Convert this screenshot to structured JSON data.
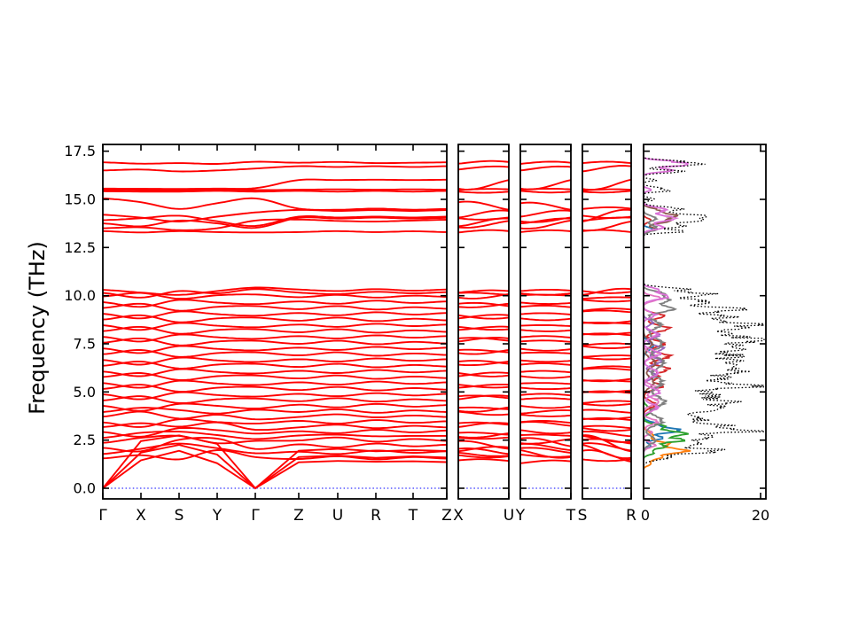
{
  "figure": {
    "background": "#ffffff",
    "frame_color": "#000000"
  },
  "chart_data": {
    "type": "line",
    "subtype": "phonon-band-structure-with-projected-dos",
    "title": "",
    "ylabel": "Frequency (THz)",
    "ylim": [
      -0.55,
      17.85
    ],
    "yticks": {
      "values": [
        0,
        2.5,
        5,
        7.5,
        10,
        12.5,
        15,
        17.5
      ],
      "labels": [
        "0.0",
        "2.5",
        "5.0",
        "7.5",
        "10.0",
        "12.5",
        "15.0",
        "17.5"
      ]
    },
    "band_color": "#ff0000",
    "zero_line": {
      "frequency": 0,
      "color": "#0000ff",
      "style": "dotted"
    },
    "panels": [
      {
        "name": "main-path",
        "klabels": [
          "Γ",
          "X",
          "S",
          "Y",
          "Γ",
          "Z",
          "U",
          "R",
          "T",
          "Z"
        ],
        "node_indices": [
          0,
          1,
          2,
          3,
          4,
          5,
          6,
          7,
          8,
          9
        ]
      },
      {
        "name": "X-U",
        "klabels": [
          "X",
          "U"
        ],
        "node_indices": [
          1,
          6
        ]
      },
      {
        "name": "Y-T",
        "klabels": [
          "Y",
          "T"
        ],
        "node_indices": [
          3,
          8
        ]
      },
      {
        "name": "S-R",
        "klabels": [
          "S",
          "R"
        ],
        "node_indices": [
          2,
          7
        ]
      },
      {
        "name": "dos",
        "xtick_labels": [
          "0",
          "20"
        ],
        "xtick_values": [
          0,
          20
        ],
        "xlim": [
          0,
          20.9
        ]
      }
    ],
    "kpoints": [
      "Γ",
      "X",
      "S",
      "Y",
      "Γ",
      "Z",
      "U",
      "R",
      "T",
      "Z"
    ],
    "bands_THz": [
      [
        0,
        1.45,
        1.95,
        1.3,
        0,
        1.35,
        1.42,
        1.38,
        1.4,
        1.36
      ],
      [
        0,
        1.85,
        2.25,
        1.75,
        0,
        1.62,
        1.7,
        1.58,
        1.66,
        1.6
      ],
      [
        0,
        2.45,
        2.75,
        2.3,
        0,
        1.95,
        2.05,
        1.92,
        1.98,
        1.94
      ],
      [
        1.55,
        1.72,
        1.5,
        1.98,
        1.62,
        1.52,
        1.66,
        1.5,
        1.62,
        1.54
      ],
      [
        1.78,
        2.05,
        2.32,
        2.08,
        1.82,
        1.9,
        1.78,
        1.96,
        1.84,
        1.92
      ],
      [
        2.1,
        1.92,
        2.52,
        2.58,
        2.04,
        2.28,
        2.12,
        2.32,
        2.18,
        2.26
      ],
      [
        2.36,
        2.62,
        2.72,
        2.34,
        2.46,
        2.48,
        2.64,
        2.42,
        2.56,
        2.46
      ],
      [
        2.62,
        2.88,
        2.94,
        2.76,
        2.56,
        2.74,
        2.78,
        2.7,
        2.72,
        2.72
      ],
      [
        2.92,
        2.68,
        3.12,
        3.02,
        2.84,
        2.96,
        2.86,
        3.04,
        2.9,
        3.0
      ],
      [
        3.18,
        3.38,
        3.2,
        3.42,
        3.04,
        3.16,
        3.3,
        3.12,
        3.24,
        3.16
      ],
      [
        3.42,
        3.18,
        3.58,
        3.44,
        3.36,
        3.5,
        3.36,
        3.54,
        3.4,
        3.48
      ],
      [
        3.72,
        3.98,
        3.62,
        3.82,
        3.58,
        3.7,
        3.84,
        3.68,
        3.78,
        3.7
      ],
      [
        3.96,
        4.18,
        4.06,
        3.88,
        4.08,
        3.96,
        4.1,
        3.92,
        4.04,
        3.96
      ],
      [
        4.28,
        4.02,
        4.38,
        4.28,
        4.14,
        4.34,
        4.2,
        4.38,
        4.24,
        4.32
      ],
      [
        4.56,
        4.78,
        4.42,
        4.62,
        4.66,
        4.52,
        4.68,
        4.5,
        4.62,
        4.54
      ],
      [
        4.88,
        4.62,
        4.98,
        4.84,
        4.76,
        4.9,
        4.78,
        4.94,
        4.82,
        4.9
      ],
      [
        5.16,
        5.38,
        5.02,
        5.22,
        5.26,
        5.1,
        5.26,
        5.08,
        5.2,
        5.12
      ],
      [
        5.46,
        5.22,
        5.58,
        5.44,
        5.36,
        5.5,
        5.38,
        5.54,
        5.42,
        5.5
      ],
      [
        5.78,
        5.98,
        5.62,
        5.82,
        5.86,
        5.7,
        5.86,
        5.68,
        5.8,
        5.72
      ],
      [
        6.06,
        5.82,
        6.18,
        6.04,
        5.96,
        6.1,
        5.98,
        6.14,
        6.02,
        6.1
      ],
      [
        6.36,
        6.58,
        6.22,
        6.42,
        6.46,
        6.3,
        6.46,
        6.28,
        6.4,
        6.32
      ],
      [
        6.66,
        6.42,
        6.78,
        6.64,
        6.56,
        6.7,
        6.58,
        6.74,
        6.62,
        6.7
      ],
      [
        6.96,
        7.18,
        6.82,
        7.02,
        7.06,
        6.9,
        7.06,
        6.88,
        7.0,
        6.92
      ],
      [
        7.26,
        7.02,
        7.38,
        7.24,
        7.16,
        7.3,
        7.18,
        7.34,
        7.22,
        7.3
      ],
      [
        7.56,
        7.78,
        7.42,
        7.62,
        7.66,
        7.5,
        7.66,
        7.48,
        7.6,
        7.52
      ],
      [
        7.86,
        7.62,
        7.98,
        7.84,
        7.76,
        7.9,
        7.78,
        7.94,
        7.82,
        7.9
      ],
      [
        8.16,
        8.38,
        8.02,
        8.22,
        8.26,
        8.1,
        8.26,
        8.08,
        8.2,
        8.12
      ],
      [
        8.46,
        8.22,
        8.58,
        8.44,
        8.36,
        8.5,
        8.38,
        8.54,
        8.42,
        8.5
      ],
      [
        8.76,
        8.98,
        8.62,
        8.82,
        8.86,
        8.7,
        8.86,
        8.68,
        8.8,
        8.72
      ],
      [
        9.06,
        8.82,
        9.18,
        9.04,
        8.96,
        9.1,
        8.98,
        9.14,
        9.02,
        9.1
      ],
      [
        9.36,
        9.58,
        9.22,
        9.42,
        9.46,
        9.3,
        9.46,
        9.28,
        9.4,
        9.32
      ],
      [
        9.66,
        9.42,
        9.78,
        9.64,
        9.56,
        9.7,
        9.58,
        9.74,
        9.62,
        9.7
      ],
      [
        9.96,
        10.14,
        9.84,
        10.02,
        10.06,
        9.92,
        10.04,
        9.9,
        10.0,
        9.94
      ],
      [
        10.14,
        9.9,
        10.24,
        10.12,
        10.34,
        10.16,
        10.08,
        10.2,
        10.12,
        10.18
      ],
      [
        10.3,
        10.16,
        10.04,
        10.24,
        10.42,
        10.32,
        10.24,
        10.34,
        10.26,
        10.32
      ],
      [
        13.35,
        13.28,
        13.35,
        13.3,
        13.28,
        13.3,
        13.35,
        13.3,
        13.34,
        13.3
      ],
      [
        13.5,
        13.55,
        13.4,
        13.5,
        13.9,
        13.95,
        13.88,
        13.85,
        13.9,
        13.94
      ],
      [
        13.75,
        13.6,
        13.9,
        13.75,
        13.52,
        14.04,
        14.0,
        14.05,
        14.0,
        14.04
      ],
      [
        13.92,
        14.02,
        14.15,
        13.86,
        13.62,
        14.1,
        14.06,
        14.1,
        14.06,
        14.1
      ],
      [
        14.2,
        14.05,
        13.85,
        14.1,
        14.32,
        14.45,
        14.4,
        14.44,
        14.4,
        14.44
      ],
      [
        15.05,
        14.85,
        14.5,
        14.8,
        15.05,
        14.52,
        14.46,
        14.52,
        14.46,
        14.5
      ],
      [
        15.42,
        15.4,
        15.4,
        15.44,
        15.4,
        15.44,
        15.4,
        15.44,
        15.4,
        15.44
      ],
      [
        15.5,
        15.48,
        15.46,
        15.5,
        15.48,
        15.5,
        15.52,
        15.5,
        15.52,
        15.5
      ],
      [
        15.56,
        15.55,
        15.54,
        15.56,
        15.58,
        16.0,
        16.0,
        16.02,
        16.0,
        16.02
      ],
      [
        16.5,
        16.55,
        16.45,
        16.5,
        16.6,
        16.72,
        16.68,
        16.72,
        16.68,
        16.72
      ],
      [
        16.92,
        16.85,
        16.88,
        16.84,
        16.95,
        16.9,
        16.94,
        16.88,
        16.9,
        16.92
      ]
    ],
    "dos": {
      "xlabel_ticks": [
        "0",
        "20"
      ],
      "partial": [
        {
          "name": "pdos-1",
          "color": "#1f77b4",
          "peaks": [
            [
              2.62,
              3.2,
              0.16
            ],
            [
              3.0,
              6.2,
              0.16
            ],
            [
              3.3,
              2.6,
              0.18
            ],
            [
              7.4,
              1.6,
              0.3
            ],
            [
              13.45,
              1.6,
              0.12
            ],
            [
              2.2,
              1.2,
              0.15
            ]
          ]
        },
        {
          "name": "pdos-2",
          "color": "#ff7f0e",
          "peaks": [
            [
              1.25,
              1.2,
              0.12
            ],
            [
              1.62,
              3.2,
              0.2
            ],
            [
              1.95,
              7.8,
              0.16
            ],
            [
              2.3,
              4.2,
              0.18
            ],
            [
              2.75,
              1.6,
              0.25
            ]
          ]
        },
        {
          "name": "pdos-3",
          "color": "#2ca02c",
          "peaks": [
            [
              1.85,
              1.8,
              0.15
            ],
            [
              2.15,
              3.4,
              0.14
            ],
            [
              2.5,
              6.6,
              0.18
            ],
            [
              2.85,
              7.0,
              0.16
            ],
            [
              3.2,
              3.6,
              0.18
            ],
            [
              4.05,
              1.4,
              0.25
            ]
          ]
        },
        {
          "name": "pdos-4",
          "color": "#d62728",
          "peaks": [
            [
              4.35,
              2.0,
              0.25
            ],
            [
              5.3,
              3.2,
              0.25
            ],
            [
              6.2,
              4.2,
              0.22
            ],
            [
              6.85,
              4.6,
              0.25
            ],
            [
              7.5,
              3.6,
              0.25
            ],
            [
              8.3,
              4.2,
              0.25
            ],
            [
              8.95,
              3.4,
              0.2
            ],
            [
              5.8,
              2.4,
              0.2
            ],
            [
              13.9,
              1.2,
              0.15
            ]
          ]
        },
        {
          "name": "pdos-5",
          "color": "#9467bd",
          "peaks": [
            [
              5.85,
              2.0,
              0.25
            ],
            [
              6.6,
              3.0,
              0.25
            ],
            [
              7.25,
              3.3,
              0.25
            ],
            [
              7.95,
              2.6,
              0.25
            ],
            [
              8.6,
              1.6,
              0.2
            ]
          ]
        },
        {
          "name": "pdos-6",
          "color": "#8c564b",
          "peaks": [
            [
              5.5,
              1.8,
              0.35
            ],
            [
              6.5,
              2.0,
              0.35
            ],
            [
              7.5,
              1.5,
              0.3
            ],
            [
              13.45,
              2.2,
              0.12
            ],
            [
              13.85,
              3.4,
              0.18
            ],
            [
              14.15,
              5.2,
              0.2
            ],
            [
              14.45,
              2.0,
              0.15
            ]
          ]
        },
        {
          "name": "pdos-7",
          "color": "#e377c2",
          "peaks": [
            [
              2.25,
              2.0,
              0.18
            ],
            [
              3.45,
              2.4,
              0.2
            ],
            [
              4.5,
              2.6,
              0.25
            ],
            [
              5.2,
              2.2,
              0.25
            ],
            [
              6.9,
              1.6,
              0.25
            ],
            [
              9.85,
              3.0,
              0.18
            ],
            [
              2.9,
              1.5,
              0.15
            ]
          ]
        },
        {
          "name": "pdos-8",
          "color": "#7f7f7f",
          "peaks": [
            [
              2.5,
              2.0,
              0.3
            ],
            [
              3.5,
              3.2,
              0.35
            ],
            [
              4.5,
              3.6,
              0.4
            ],
            [
              5.5,
              3.2,
              0.4
            ],
            [
              6.5,
              3.6,
              0.4
            ],
            [
              7.5,
              3.2,
              0.4
            ],
            [
              8.5,
              2.8,
              0.35
            ],
            [
              9.3,
              5.0,
              0.22
            ],
            [
              9.75,
              4.2,
              0.2
            ],
            [
              10.1,
              3.4,
              0.18
            ],
            [
              13.5,
              2.4,
              0.2
            ],
            [
              14.0,
              2.0,
              0.2
            ]
          ]
        },
        {
          "name": "pdos-9",
          "color": "#da70d6",
          "peaks": [
            [
              4.2,
              2.4,
              0.25
            ],
            [
              5.0,
              2.8,
              0.25
            ],
            [
              6.0,
              2.4,
              0.3
            ],
            [
              7.0,
              2.8,
              0.25
            ],
            [
              8.0,
              2.4,
              0.25
            ],
            [
              9.0,
              2.0,
              0.2
            ],
            [
              9.95,
              4.0,
              0.2
            ],
            [
              10.3,
              2.6,
              0.15
            ],
            [
              13.55,
              3.6,
              0.15
            ],
            [
              14.0,
              5.4,
              0.2
            ],
            [
              14.45,
              3.6,
              0.18
            ],
            [
              15.5,
              1.4,
              0.1
            ],
            [
              16.5,
              5.0,
              0.12
            ],
            [
              16.82,
              8.5,
              0.13
            ],
            [
              17.0,
              3.0,
              0.08
            ]
          ]
        }
      ],
      "total": {
        "name": "total-dos",
        "color": "#000000",
        "style": "dotted",
        "peaks": [
          [
            1.62,
            4,
            0.2
          ],
          [
            1.95,
            13,
            0.16
          ],
          [
            2.3,
            10,
            0.18
          ],
          [
            2.62,
            12,
            0.16
          ],
          [
            2.95,
            17,
            0.16
          ],
          [
            3.25,
            12,
            0.18
          ],
          [
            3.6,
            9,
            0.25
          ],
          [
            4.1,
            11,
            0.25
          ],
          [
            4.5,
            13,
            0.25
          ],
          [
            4.9,
            10,
            0.22
          ],
          [
            5.3,
            18,
            0.2
          ],
          [
            5.7,
            12,
            0.25
          ],
          [
            6.1,
            14,
            0.22
          ],
          [
            6.5,
            16,
            0.25
          ],
          [
            6.9,
            13,
            0.22
          ],
          [
            7.3,
            15,
            0.25
          ],
          [
            7.7,
            19,
            0.2
          ],
          [
            8.1,
            14,
            0.25
          ],
          [
            8.5,
            19,
            0.2
          ],
          [
            8.9,
            13,
            0.22
          ],
          [
            9.3,
            16,
            0.2
          ],
          [
            9.7,
            10,
            0.18
          ],
          [
            10.05,
            12,
            0.16
          ],
          [
            10.35,
            7,
            0.12
          ],
          [
            13.35,
            8,
            0.1
          ],
          [
            13.6,
            6,
            0.12
          ],
          [
            13.9,
            10,
            0.16
          ],
          [
            14.15,
            9,
            0.16
          ],
          [
            14.5,
            6,
            0.15
          ],
          [
            15.0,
            2,
            0.1
          ],
          [
            15.45,
            4.5,
            0.08
          ],
          [
            15.6,
            3,
            0.08
          ],
          [
            16.0,
            2,
            0.08
          ],
          [
            16.45,
            7,
            0.1
          ],
          [
            16.82,
            10.5,
            0.12
          ],
          [
            17.0,
            5,
            0.08
          ]
        ]
      }
    }
  }
}
